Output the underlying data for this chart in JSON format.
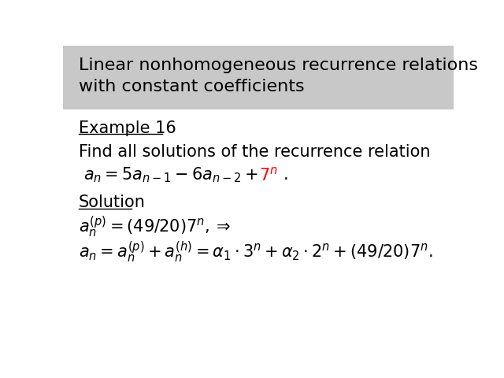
{
  "title": "Linear nonhomogeneous recurrence relations\nwith constant coefficients",
  "title_bg": "#c8c8c8",
  "title_fontsize": 16,
  "title_color": "#000000",
  "example_label": "Example 16",
  "find_text": "Find all solutions of the recurrence relation",
  "solution_label": "Solution",
  "bg_color": "#ffffff",
  "text_color": "#000000",
  "body_fontsize": 15
}
